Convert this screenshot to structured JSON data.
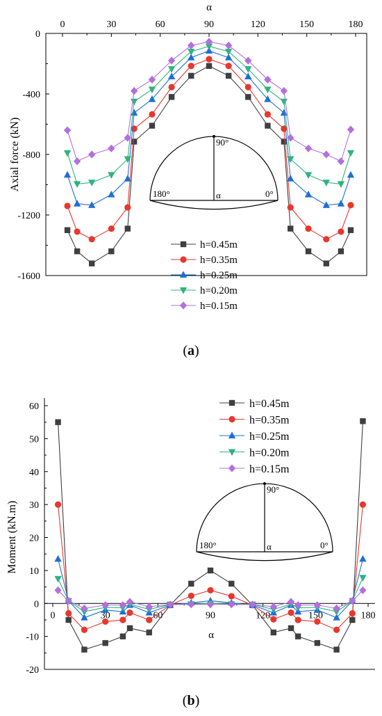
{
  "chart_data": [
    {
      "type": "line",
      "panel_label": "a",
      "xlabel": "α",
      "ylabel": "Axial force (kN)",
      "xlim": [
        0,
        180
      ],
      "ylim": [
        -1600,
        0
      ],
      "x_ticks": [
        "0",
        "30",
        "60",
        "90",
        "120",
        "150",
        "180"
      ],
      "y_ticks": [
        "0",
        "-400",
        "-800",
        "-1200",
        "-1600"
      ],
      "x_axis_position": "top",
      "grid": false,
      "legend_position": "bottom-center",
      "inset": {
        "top_label": "90°",
        "left_label": "180°",
        "center_label": "α",
        "right_label": "0°"
      },
      "x": [
        3,
        9,
        18,
        30,
        40,
        44,
        55,
        67,
        79,
        90,
        102,
        114,
        126,
        136,
        140,
        151,
        162,
        171,
        177
      ],
      "series": [
        {
          "name": "h=0.45m",
          "marker": "square",
          "color": "#3f3f3f",
          "values": [
            -1300,
            -1440,
            -1520,
            -1440,
            -1290,
            -715,
            -610,
            -420,
            -280,
            -215,
            -280,
            -420,
            -610,
            -715,
            -1290,
            -1440,
            -1520,
            -1440,
            -1300
          ]
        },
        {
          "name": "h=0.35m",
          "marker": "circle",
          "color": "#e8372e",
          "values": [
            -1140,
            -1310,
            -1360,
            -1290,
            -1150,
            -630,
            -535,
            -355,
            -215,
            -170,
            -215,
            -355,
            -535,
            -630,
            -1150,
            -1290,
            -1360,
            -1310,
            -1135
          ]
        },
        {
          "name": "h=0.25m",
          "marker": "triangle-up",
          "color": "#1f6fd6",
          "values": [
            -935,
            -1125,
            -1135,
            -1065,
            -960,
            -525,
            -435,
            -285,
            -160,
            -115,
            -160,
            -285,
            -435,
            -525,
            -960,
            -1065,
            -1135,
            -1125,
            -935
          ]
        },
        {
          "name": "h=0.20m",
          "marker": "triangle-down",
          "color": "#2fb37d",
          "values": [
            -790,
            -995,
            -985,
            -935,
            -830,
            -450,
            -370,
            -235,
            -120,
            -85,
            -120,
            -235,
            -370,
            -450,
            -830,
            -935,
            -985,
            -995,
            -790
          ]
        },
        {
          "name": "h=0.15m",
          "marker": "diamond",
          "color": "#b36fe0",
          "values": [
            -640,
            -845,
            -800,
            -760,
            -690,
            -380,
            -305,
            -180,
            -80,
            -55,
            -80,
            -180,
            -305,
            -380,
            -690,
            -760,
            -800,
            -845,
            -635
          ]
        }
      ]
    },
    {
      "type": "line",
      "panel_label": "b",
      "xlabel": "α",
      "ylabel": "Moment (kN.m)",
      "xlim": [
        -5,
        185
      ],
      "ylim": [
        -20,
        60
      ],
      "x_ticks": [
        "0",
        "30",
        "60",
        "90",
        "120",
        "150",
        "180"
      ],
      "y_ticks": [
        "60",
        "50",
        "40",
        "30",
        "20",
        "10",
        "0",
        "-10",
        "-20"
      ],
      "grid": false,
      "legend_position": "top-right",
      "inset": {
        "top_label": "90°",
        "left_label": "180°",
        "center_label": "α",
        "right_label": "0°"
      },
      "x": [
        3,
        9,
        18,
        30,
        40,
        44,
        55,
        67,
        79,
        90,
        102,
        114,
        126,
        136,
        140,
        151,
        162,
        171,
        177
      ],
      "series": [
        {
          "name": "h=0.45m",
          "marker": "square",
          "color": "#3f3f3f",
          "values": [
            55,
            -5,
            -14,
            -12,
            -10,
            -7.5,
            -8.8,
            -0.5,
            6,
            10,
            6,
            -0.5,
            -8.8,
            -7.5,
            -10,
            -12,
            -14,
            -5,
            55.3
          ]
        },
        {
          "name": "h=0.35m",
          "marker": "circle",
          "color": "#e8372e",
          "values": [
            30,
            -3,
            -8,
            -5.5,
            -5,
            -2.8,
            -5,
            -0.5,
            2.3,
            4,
            2.2,
            -0.5,
            -4.8,
            -2.8,
            -5,
            -5.5,
            -8,
            -3,
            30
          ]
        },
        {
          "name": "h=0.25m",
          "marker": "triangle-up",
          "color": "#1f6fd6",
          "values": [
            13.5,
            0.8,
            -4.3,
            -2,
            -2.5,
            -0.5,
            -2.8,
            -0.5,
            0.2,
            0.8,
            0.2,
            -0.5,
            -2.8,
            -0.5,
            -2.5,
            -2,
            -4.3,
            0.8,
            13.5
          ]
        },
        {
          "name": "h=0.20m",
          "marker": "triangle-down",
          "color": "#2fb37d",
          "values": [
            7.5,
            0.8,
            -2.5,
            -1.2,
            -1.3,
            -0.2,
            -1.8,
            -0.3,
            -0.2,
            0,
            -0.2,
            -0.3,
            -1.8,
            -0.2,
            -1.3,
            -1.2,
            -2.5,
            0.8,
            7.8
          ]
        },
        {
          "name": "h=0.15m",
          "marker": "diamond",
          "color": "#b36fe0",
          "values": [
            4,
            0.8,
            -1.5,
            -0.5,
            -0.5,
            0.5,
            -1,
            -0.3,
            -0.3,
            -0.3,
            -0.3,
            -0.3,
            -1,
            0.5,
            -0.5,
            -0.5,
            -1.5,
            0.8,
            4
          ]
        }
      ]
    }
  ]
}
